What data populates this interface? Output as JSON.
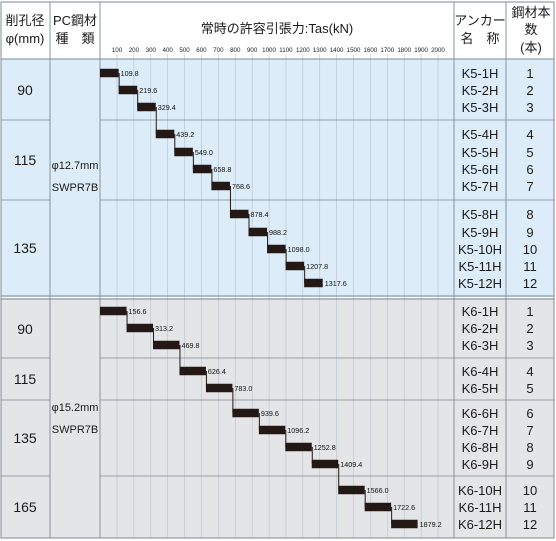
{
  "header": {
    "hole_dia": [
      "削孔径",
      "φ(mm)"
    ],
    "pc_steel": [
      "PC鋼材",
      "種　類"
    ],
    "chart_title": "常時の許容引張力:Tas(kN)",
    "anchor_name": [
      "アンカー",
      "名　称"
    ],
    "strand_count": [
      "鋼材本数",
      "(本)"
    ]
  },
  "groups": [
    {
      "series": "K5",
      "spec_dia": "φ12.7mm",
      "spec_type": "SWPR7B",
      "rows": [
        {
          "hole": "90",
          "anchors": [
            "K5-1H",
            "K5-2H",
            "K5-3H"
          ],
          "counts": [
            "1",
            "2",
            "3"
          ]
        },
        {
          "hole": "115",
          "anchors": [
            "K5-4H",
            "K5-5H",
            "K5-6H",
            "K5-7H"
          ],
          "counts": [
            "4",
            "5",
            "6",
            "7"
          ]
        },
        {
          "hole": "135",
          "anchors": [
            "K5-8H",
            "K5-9H",
            "K5-10H",
            "K5-11H",
            "K5-12H"
          ],
          "counts": [
            "8",
            "9",
            "10",
            "11",
            "12"
          ]
        }
      ]
    },
    {
      "series": "K6",
      "spec_dia": "φ15.2mm",
      "spec_type": "SWPR7B",
      "rows": [
        {
          "hole": "90",
          "anchors": [
            "K6-1H",
            "K6-2H",
            "K6-3H"
          ],
          "counts": [
            "1",
            "2",
            "3"
          ]
        },
        {
          "hole": "115",
          "anchors": [
            "K6-4H",
            "K6-5H"
          ],
          "counts": [
            "4",
            "5"
          ]
        },
        {
          "hole": "135",
          "anchors": [
            "K6-6H",
            "K6-7H",
            "K6-8H",
            "K6-9H"
          ],
          "counts": [
            "6",
            "7",
            "8",
            "9"
          ]
        },
        {
          "hole": "165",
          "anchors": [
            "K6-10H",
            "K6-11H",
            "K6-12H"
          ],
          "counts": [
            "10",
            "11",
            "12"
          ]
        }
      ]
    }
  ],
  "chart_data": {
    "type": "bar",
    "orientation": "horizontal-range",
    "title": "常時の許容引張力:Tas(kN)",
    "x_ticks": [
      100,
      200,
      300,
      400,
      500,
      600,
      700,
      800,
      900,
      1000,
      1100,
      1200,
      1300,
      1400,
      1500,
      1600,
      1700,
      1800,
      1900,
      2000
    ],
    "xlim": [
      100,
      2000
    ],
    "series": [
      {
        "categories": [
          "K5-1H",
          "K5-2H",
          "K5-3H",
          "K5-4H",
          "K5-5H",
          "K5-6H",
          "K5-7H",
          "K5-8H",
          "K5-9H",
          "K5-10H",
          "K5-11H",
          "K5-12H"
        ],
        "start": [
          0,
          109.8,
          219.6,
          329.4,
          439.2,
          549.0,
          658.8,
          768.6,
          878.4,
          988.2,
          1098.0,
          1207.8
        ],
        "values": [
          109.8,
          219.6,
          329.4,
          439.2,
          549.0,
          658.8,
          768.6,
          878.4,
          988.2,
          1098.0,
          1207.8,
          1317.6
        ],
        "labels": [
          "109.8",
          "219.6",
          "329.4",
          "439.2",
          "549.0",
          "658.8",
          "768.6",
          "878.4",
          "988.2",
          "1098.0",
          "1207.8",
          "1317.6"
        ]
      },
      {
        "categories": [
          "K6-1H",
          "K6-2H",
          "K6-3H",
          "K6-4H",
          "K6-5H",
          "K6-6H",
          "K6-7H",
          "K6-8H",
          "K6-9H",
          "K6-10H",
          "K6-11H",
          "K6-12H"
        ],
        "start": [
          0,
          156.6,
          313.2,
          469.8,
          626.4,
          783.0,
          939.6,
          1096.2,
          1252.8,
          1409.4,
          1566.0,
          1722.6
        ],
        "values": [
          156.6,
          313.2,
          469.8,
          626.4,
          783.0,
          939.6,
          1096.2,
          1252.8,
          1409.4,
          1566.0,
          1722.6,
          1879.2
        ],
        "labels": [
          "156.6",
          "313.2",
          "469.8",
          "626.4",
          "783.0",
          "939.6",
          "1096.2",
          "1252.8",
          "1409.4",
          "1566.0",
          "1722.6",
          "1879.2"
        ]
      }
    ]
  },
  "colors": {
    "panel_k5": "#dcecf8",
    "panel_k6": "#e4e5e7",
    "bar": "#231815",
    "grid": "#b8c2cc",
    "border": "#7d8a96",
    "header_bg": "#ffffff"
  }
}
